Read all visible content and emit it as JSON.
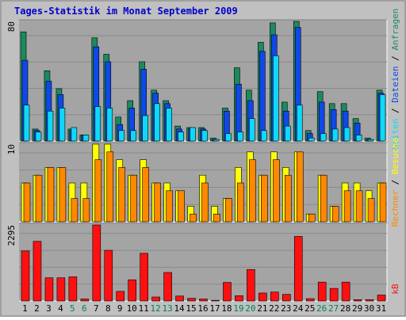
{
  "chart_data": {
    "title": "Tages-Statistik im Monat September 2009",
    "x_categories": [
      "1",
      "2",
      "3",
      "4",
      "5",
      "6",
      "7",
      "8",
      "9",
      "10",
      "11",
      "12",
      "13",
      "14",
      "15",
      "16",
      "17",
      "18",
      "19",
      "20",
      "21",
      "22",
      "23",
      "24",
      "25",
      "26",
      "27",
      "28",
      "29",
      "30",
      "31"
    ],
    "weekend_days": [
      "5",
      "6",
      "12",
      "13",
      "19",
      "20",
      "26",
      "27"
    ],
    "colors": {
      "background": "#c0c0c0",
      "plot": "#a4a4a4",
      "title": "#0000cc",
      "anfragen": "#1b8a5f",
      "dateien": "#1048e8",
      "seiten": "#10d8f8",
      "besuche": "#ffff00",
      "rechner": "#ff8800",
      "kb": "#ff1010",
      "weekend_label": "#00805a",
      "label_black": "#000000"
    },
    "panels": [
      {
        "type": "bar",
        "ymax_label": "80",
        "ymax": 80,
        "axis_label_parts": [
          {
            "text": "Seiten",
            "color": "#10d8f8"
          },
          {
            "text": " / ",
            "color": "#000000"
          },
          {
            "text": "Dateien",
            "color": "#1048e8"
          },
          {
            "text": " / ",
            "color": "#000000"
          },
          {
            "text": "Anfragen",
            "color": "#1b8a5f"
          }
        ],
        "series": [
          {
            "name": "Anfragen",
            "values": [
              73,
              8,
              47,
              35,
              8,
              4,
              69,
              58,
              16,
              27,
              53,
              34,
              27,
              10,
              9,
              9,
              2,
              22,
              49,
              34,
              66,
              79,
              26,
              80,
              7,
              33,
              25,
              25,
              15,
              2,
              34
            ]
          },
          {
            "name": "Dateien",
            "values": [
              54,
              7,
              40,
              31,
              7,
              4,
              63,
              53,
              11,
              22,
              48,
              32,
              25,
              8,
              8,
              8,
              1,
              20,
              38,
              27,
              60,
              71,
              20,
              76,
              5,
              26,
              21,
              20,
              12,
              1,
              32
            ]
          },
          {
            "name": "Seiten",
            "values": [
              24,
              6,
              20,
              22,
              9,
              4,
              23,
              22,
              7,
              7,
              17,
              25,
              22,
              6,
              9,
              7,
              1,
              5,
              6,
              15,
              7,
              57,
              10,
              24,
              2,
              5,
              8,
              9,
              4,
              1,
              31
            ]
          }
        ]
      },
      {
        "type": "bar",
        "ymax_label": "10",
        "ymax": 10,
        "axis_label_parts": [
          {
            "text": "Rechner",
            "color": "#ff8800"
          },
          {
            "text": " / ",
            "color": "#000000"
          },
          {
            "text": "Besuche",
            "color": "#ffff00"
          }
        ],
        "series": [
          {
            "name": "Besuche",
            "values": [
              5,
              6,
              7,
              7,
              5,
              5,
              10,
              10,
              8,
              6,
              8,
              5,
              5,
              4,
              2,
              6,
              2,
              3,
              7,
              9,
              6,
              9,
              7,
              9,
              1,
              6,
              2,
              5,
              5,
              4,
              5
            ]
          },
          {
            "name": "Rechner",
            "values": [
              5,
              6,
              7,
              7,
              3,
              3,
              8,
              9,
              7,
              6,
              7,
              5,
              4,
              4,
              1,
              5,
              1,
              3,
              5,
              8,
              6,
              8,
              6,
              9,
              1,
              6,
              2,
              4,
              4,
              3,
              5
            ]
          }
        ]
      },
      {
        "type": "bar",
        "ymax_label": "2295",
        "ymax": 2295,
        "axis_label_parts": [
          {
            "text": "kB",
            "color": "#ff1010"
          }
        ],
        "series": [
          {
            "name": "kB",
            "values": [
              1510,
              1800,
              700,
              700,
              730,
              60,
              2295,
              1530,
              290,
              640,
              1440,
              120,
              860,
              150,
              80,
              60,
              20,
              560,
              160,
              950,
              240,
              270,
              200,
              1950,
              70,
              570,
              380,
              570,
              40,
              40,
              180
            ]
          }
        ]
      }
    ]
  }
}
